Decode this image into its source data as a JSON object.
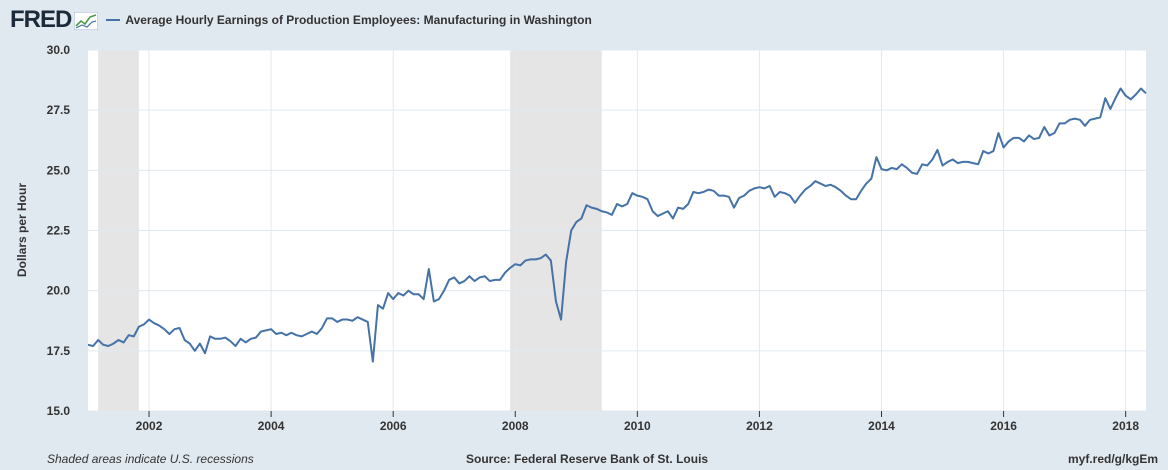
{
  "header": {
    "logo_text": "FRED",
    "logo_icon": "fred-graph-icon",
    "legend_label": "Average Hourly Earnings of Production Employees: Manufacturing in Washington"
  },
  "footer": {
    "note": "Shaded areas indicate U.S. recessions",
    "source": "Source: Federal Reserve Bank of St. Louis",
    "short_url": "myf.red/g/kgEm"
  },
  "colors": {
    "background": "#e1e9f0",
    "plot_background": "#ffffff",
    "series": "#4572a7",
    "recession": "#e5e5e5",
    "grid": "#e1e9f0"
  },
  "chart_data": {
    "type": "line",
    "title": "",
    "xlabel": "",
    "ylabel": "Dollars per Hour",
    "xlim": [
      "2001-01-01",
      "2018-05-01"
    ],
    "ylim": [
      15.0,
      30.0
    ],
    "grid": true,
    "legend": "top-left",
    "x_ticks": [
      "2002",
      "2004",
      "2006",
      "2008",
      "2010",
      "2012",
      "2014",
      "2016",
      "2018"
    ],
    "y_ticks": [
      "15.0",
      "17.5",
      "20.0",
      "22.5",
      "25.0",
      "27.5",
      "30.0"
    ],
    "recessions": [
      {
        "start": "2001-03-01",
        "end": "2001-11-01"
      },
      {
        "start": "2007-12-01",
        "end": "2009-06-01"
      }
    ],
    "series": [
      {
        "name": "Average Hourly Earnings of Production Employees: Manufacturing in Washington",
        "color": "#4572a7",
        "points": [
          [
            "2001-01",
            17.75
          ],
          [
            "2001-02",
            17.7
          ],
          [
            "2001-03",
            17.95
          ],
          [
            "2001-04",
            17.75
          ],
          [
            "2001-05",
            17.7
          ],
          [
            "2001-06",
            17.8
          ],
          [
            "2001-07",
            17.95
          ],
          [
            "2001-08",
            17.85
          ],
          [
            "2001-09",
            18.15
          ],
          [
            "2001-10",
            18.1
          ],
          [
            "2001-11",
            18.5
          ],
          [
            "2001-12",
            18.6
          ],
          [
            "2002-01",
            18.8
          ],
          [
            "2002-02",
            18.65
          ],
          [
            "2002-03",
            18.55
          ],
          [
            "2002-04",
            18.4
          ],
          [
            "2002-05",
            18.2
          ],
          [
            "2002-06",
            18.4
          ],
          [
            "2002-07",
            18.45
          ],
          [
            "2002-08",
            17.95
          ],
          [
            "2002-09",
            17.8
          ],
          [
            "2002-10",
            17.5
          ],
          [
            "2002-11",
            17.8
          ],
          [
            "2002-12",
            17.4
          ],
          [
            "2003-01",
            18.1
          ],
          [
            "2003-02",
            18.0
          ],
          [
            "2003-03",
            18.0
          ],
          [
            "2003-04",
            18.05
          ],
          [
            "2003-05",
            17.9
          ],
          [
            "2003-06",
            17.7
          ],
          [
            "2003-07",
            18.0
          ],
          [
            "2003-08",
            17.85
          ],
          [
            "2003-09",
            18.0
          ],
          [
            "2003-10",
            18.05
          ],
          [
            "2003-11",
            18.3
          ],
          [
            "2003-12",
            18.35
          ],
          [
            "2004-01",
            18.4
          ],
          [
            "2004-02",
            18.2
          ],
          [
            "2004-03",
            18.25
          ],
          [
            "2004-04",
            18.15
          ],
          [
            "2004-05",
            18.25
          ],
          [
            "2004-06",
            18.15
          ],
          [
            "2004-07",
            18.1
          ],
          [
            "2004-08",
            18.2
          ],
          [
            "2004-09",
            18.3
          ],
          [
            "2004-10",
            18.2
          ],
          [
            "2004-11",
            18.45
          ],
          [
            "2004-12",
            18.85
          ],
          [
            "2005-01",
            18.85
          ],
          [
            "2005-02",
            18.7
          ],
          [
            "2005-03",
            18.8
          ],
          [
            "2005-04",
            18.8
          ],
          [
            "2005-05",
            18.75
          ],
          [
            "2005-06",
            18.9
          ],
          [
            "2005-07",
            18.8
          ],
          [
            "2005-08",
            18.7
          ],
          [
            "2005-09",
            17.05
          ],
          [
            "2005-10",
            19.4
          ],
          [
            "2005-11",
            19.25
          ],
          [
            "2005-12",
            19.9
          ],
          [
            "2006-01",
            19.65
          ],
          [
            "2006-02",
            19.9
          ],
          [
            "2006-03",
            19.8
          ],
          [
            "2006-04",
            20.0
          ],
          [
            "2006-05",
            19.85
          ],
          [
            "2006-06",
            19.85
          ],
          [
            "2006-07",
            19.65
          ],
          [
            "2006-08",
            20.9
          ],
          [
            "2006-09",
            19.55
          ],
          [
            "2006-10",
            19.65
          ],
          [
            "2006-11",
            20.0
          ],
          [
            "2006-12",
            20.45
          ],
          [
            "2007-01",
            20.55
          ],
          [
            "2007-02",
            20.3
          ],
          [
            "2007-03",
            20.4
          ],
          [
            "2007-04",
            20.6
          ],
          [
            "2007-05",
            20.4
          ],
          [
            "2007-06",
            20.55
          ],
          [
            "2007-07",
            20.6
          ],
          [
            "2007-08",
            20.4
          ],
          [
            "2007-09",
            20.45
          ],
          [
            "2007-10",
            20.45
          ],
          [
            "2007-11",
            20.75
          ],
          [
            "2007-12",
            20.95
          ],
          [
            "2008-01",
            21.1
          ],
          [
            "2008-02",
            21.05
          ],
          [
            "2008-03",
            21.25
          ],
          [
            "2008-04",
            21.3
          ],
          [
            "2008-05",
            21.3
          ],
          [
            "2008-06",
            21.35
          ],
          [
            "2008-07",
            21.5
          ],
          [
            "2008-08",
            21.25
          ],
          [
            "2008-09",
            19.55
          ],
          [
            "2008-10",
            18.8
          ],
          [
            "2008-11",
            21.2
          ],
          [
            "2008-12",
            22.5
          ],
          [
            "2009-01",
            22.85
          ],
          [
            "2009-02",
            23.0
          ],
          [
            "2009-03",
            23.55
          ],
          [
            "2009-04",
            23.45
          ],
          [
            "2009-05",
            23.4
          ],
          [
            "2009-06",
            23.3
          ],
          [
            "2009-07",
            23.25
          ],
          [
            "2009-08",
            23.15
          ],
          [
            "2009-09",
            23.6
          ],
          [
            "2009-10",
            23.5
          ],
          [
            "2009-11",
            23.6
          ],
          [
            "2009-12",
            24.05
          ],
          [
            "2010-01",
            23.95
          ],
          [
            "2010-02",
            23.9
          ],
          [
            "2010-03",
            23.8
          ],
          [
            "2010-04",
            23.3
          ],
          [
            "2010-05",
            23.1
          ],
          [
            "2010-06",
            23.2
          ],
          [
            "2010-07",
            23.3
          ],
          [
            "2010-08",
            23.0
          ],
          [
            "2010-09",
            23.45
          ],
          [
            "2010-10",
            23.4
          ],
          [
            "2010-11",
            23.6
          ],
          [
            "2010-12",
            24.1
          ],
          [
            "2011-01",
            24.05
          ],
          [
            "2011-02",
            24.1
          ],
          [
            "2011-03",
            24.2
          ],
          [
            "2011-04",
            24.15
          ],
          [
            "2011-05",
            23.95
          ],
          [
            "2011-06",
            23.95
          ],
          [
            "2011-07",
            23.9
          ],
          [
            "2011-08",
            23.45
          ],
          [
            "2011-09",
            23.85
          ],
          [
            "2011-10",
            23.95
          ],
          [
            "2011-11",
            24.15
          ],
          [
            "2011-12",
            24.25
          ],
          [
            "2012-01",
            24.3
          ],
          [
            "2012-02",
            24.25
          ],
          [
            "2012-03",
            24.35
          ],
          [
            "2012-04",
            23.9
          ],
          [
            "2012-05",
            24.1
          ],
          [
            "2012-06",
            24.05
          ],
          [
            "2012-07",
            23.95
          ],
          [
            "2012-08",
            23.65
          ],
          [
            "2012-09",
            23.95
          ],
          [
            "2012-10",
            24.2
          ],
          [
            "2012-11",
            24.35
          ],
          [
            "2012-12",
            24.55
          ],
          [
            "2013-01",
            24.45
          ],
          [
            "2013-02",
            24.35
          ],
          [
            "2013-03",
            24.4
          ],
          [
            "2013-04",
            24.3
          ],
          [
            "2013-05",
            24.15
          ],
          [
            "2013-06",
            23.95
          ],
          [
            "2013-07",
            23.8
          ],
          [
            "2013-08",
            23.8
          ],
          [
            "2013-09",
            24.15
          ],
          [
            "2013-10",
            24.45
          ],
          [
            "2013-11",
            24.65
          ],
          [
            "2013-12",
            25.55
          ],
          [
            "2014-01",
            25.05
          ],
          [
            "2014-02",
            25.0
          ],
          [
            "2014-03",
            25.1
          ],
          [
            "2014-04",
            25.05
          ],
          [
            "2014-05",
            25.25
          ],
          [
            "2014-06",
            25.1
          ],
          [
            "2014-07",
            24.9
          ],
          [
            "2014-08",
            24.85
          ],
          [
            "2014-09",
            25.25
          ],
          [
            "2014-10",
            25.2
          ],
          [
            "2014-11",
            25.45
          ],
          [
            "2014-12",
            25.85
          ],
          [
            "2015-01",
            25.2
          ],
          [
            "2015-02",
            25.35
          ],
          [
            "2015-03",
            25.45
          ],
          [
            "2015-04",
            25.3
          ],
          [
            "2015-05",
            25.35
          ],
          [
            "2015-06",
            25.35
          ],
          [
            "2015-07",
            25.3
          ],
          [
            "2015-08",
            25.25
          ],
          [
            "2015-09",
            25.8
          ],
          [
            "2015-10",
            25.7
          ],
          [
            "2015-11",
            25.8
          ],
          [
            "2015-12",
            26.55
          ],
          [
            "2016-01",
            25.95
          ],
          [
            "2016-02",
            26.2
          ],
          [
            "2016-03",
            26.35
          ],
          [
            "2016-04",
            26.35
          ],
          [
            "2016-05",
            26.2
          ],
          [
            "2016-06",
            26.45
          ],
          [
            "2016-07",
            26.3
          ],
          [
            "2016-08",
            26.35
          ],
          [
            "2016-09",
            26.8
          ],
          [
            "2016-10",
            26.45
          ],
          [
            "2016-11",
            26.55
          ],
          [
            "2016-12",
            26.95
          ],
          [
            "2017-01",
            26.95
          ],
          [
            "2017-02",
            27.1
          ],
          [
            "2017-03",
            27.15
          ],
          [
            "2017-04",
            27.1
          ],
          [
            "2017-05",
            26.85
          ],
          [
            "2017-06",
            27.1
          ],
          [
            "2017-07",
            27.15
          ],
          [
            "2017-08",
            27.2
          ],
          [
            "2017-09",
            28.0
          ],
          [
            "2017-10",
            27.55
          ],
          [
            "2017-11",
            28.0
          ],
          [
            "2017-12",
            28.4
          ],
          [
            "2018-01",
            28.1
          ],
          [
            "2018-02",
            27.95
          ],
          [
            "2018-03",
            28.15
          ],
          [
            "2018-04",
            28.4
          ],
          [
            "2018-05",
            28.2
          ]
        ]
      }
    ]
  }
}
